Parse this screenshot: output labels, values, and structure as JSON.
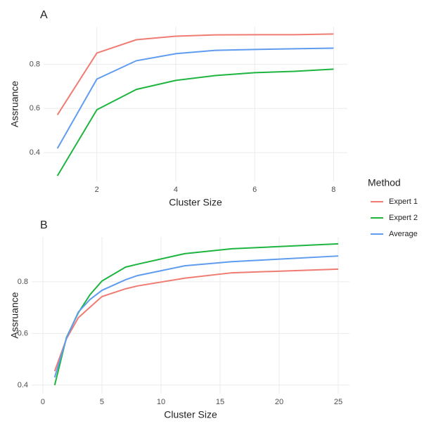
{
  "chart_data": [
    {
      "type": "line",
      "title": "A",
      "x_label": "Cluster Size",
      "y_label": "Assruance",
      "legend_title": "Method",
      "legend_position": "right",
      "x": [
        1,
        2,
        3,
        4,
        5,
        6,
        7,
        8
      ],
      "series": [
        {
          "name": "Expert 1",
          "color": "#f07b72",
          "values": [
            0.571,
            0.851,
            0.911,
            0.927,
            0.933,
            0.934,
            0.934,
            0.937
          ]
        },
        {
          "name": "Expert 2",
          "color": "#1db53f",
          "values": [
            0.295,
            0.594,
            0.686,
            0.727,
            0.749,
            0.762,
            0.768,
            0.778
          ]
        },
        {
          "name": "Average",
          "color": "#5f9cef",
          "values": [
            0.419,
            0.733,
            0.816,
            0.848,
            0.863,
            0.867,
            0.87,
            0.873
          ]
        }
      ],
      "xlim": [
        0.65,
        8.35
      ],
      "ylim": [
        0.27,
        0.97
      ],
      "xticks": [
        2,
        4,
        6,
        8
      ],
      "yticks": [
        0.4,
        0.6,
        0.8
      ],
      "grid": true
    },
    {
      "type": "line",
      "title": "B",
      "x_label": "Cluster Size",
      "y_label": "Assruance",
      "x": [
        1,
        2,
        3,
        4,
        5,
        7,
        8,
        12,
        16,
        25
      ],
      "series": [
        {
          "color": "#f07b72",
          "values": [
            0.454,
            0.58,
            0.661,
            0.702,
            0.743,
            0.773,
            0.784,
            0.814,
            0.835,
            0.849
          ]
        },
        {
          "color": "#1db53f",
          "values": [
            0.4,
            0.585,
            0.68,
            0.751,
            0.803,
            0.857,
            0.868,
            0.909,
            0.928,
            0.947
          ]
        },
        {
          "color": "#5f9cef",
          "values": [
            0.43,
            0.582,
            0.683,
            0.732,
            0.767,
            0.808,
            0.824,
            0.862,
            0.878,
            0.9
          ]
        }
      ],
      "xlim": [
        -0.95,
        25.95
      ],
      "ylim": [
        0.367,
        0.974
      ],
      "xticks": [
        0,
        5,
        10,
        15,
        20,
        25
      ],
      "yticks": [
        0.4,
        0.6,
        0.8
      ],
      "grid": true
    }
  ]
}
